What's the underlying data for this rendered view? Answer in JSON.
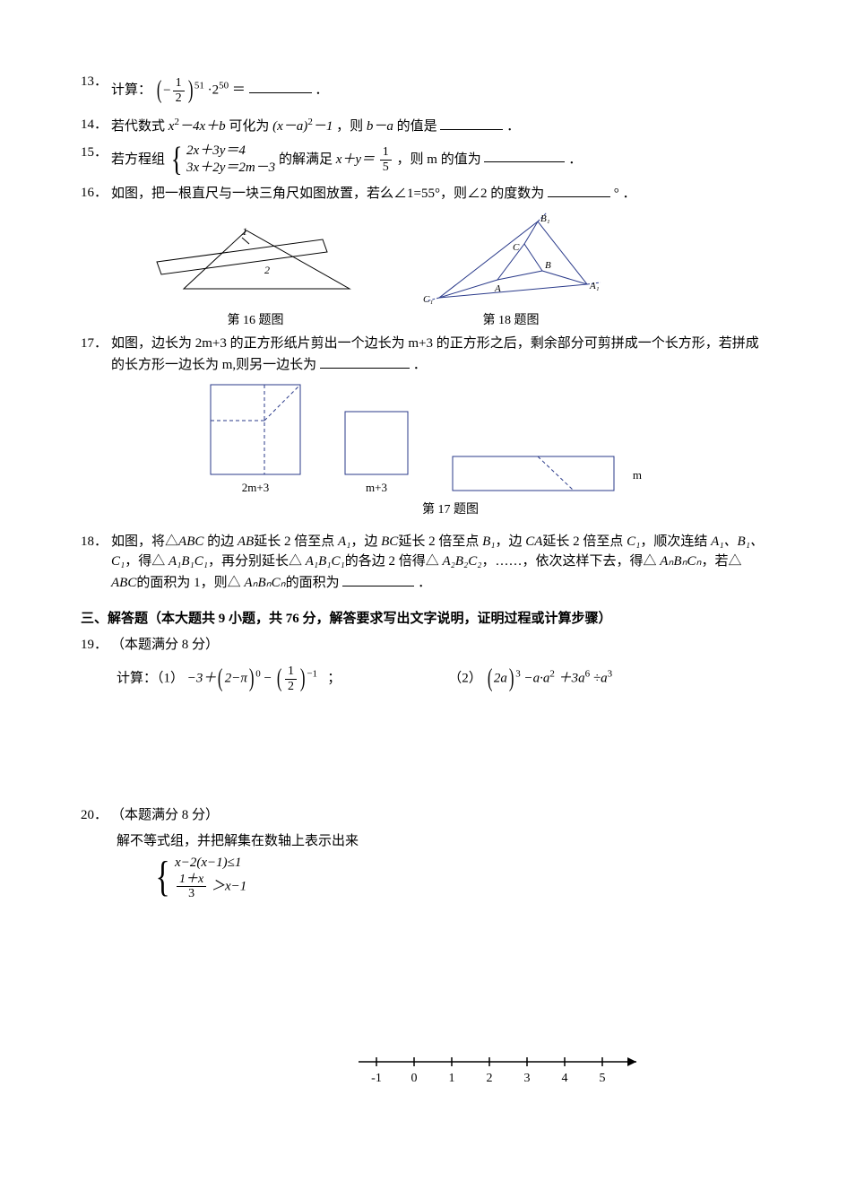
{
  "q13": {
    "num": "13．",
    "prefix": "计算：",
    "exp": "51",
    "dot": "·2",
    "exp2": "50",
    "eq": "＝",
    "period": "．"
  },
  "q14": {
    "num": "14．",
    "text1": "若代数式",
    "expr1_a": "x",
    "expr1_b": "－4",
    "expr1_c": "x＋b",
    "text2": "可化为",
    "expr2_a": "(x－a)",
    "expr2_b": "－1",
    "text3": "，则",
    "expr3": "b－a",
    "text4": "的值是",
    "period": "．"
  },
  "q15": {
    "num": "15．",
    "text1": "若方程组",
    "eq1": "2x＋3y＝4",
    "eq2": "3x＋2y＝2m－3",
    "text2": "的解满足",
    "expr": "x＋y＝",
    "frac_n": "1",
    "frac_d": "5",
    "text3": "，则 m 的值为",
    "period": "．"
  },
  "q16": {
    "num": "16．",
    "text1": "如图，把一根直尺与一块三角尺如图放置，若么∠1=55°，则∠2 的度数为",
    "deg": "°",
    "period": "．"
  },
  "fig16_caption": "第 16 题图",
  "fig18_caption": "第 18 题图",
  "fig18_labels": {
    "B1": "B₁",
    "B": "B",
    "C": "C",
    "A": "A",
    "A1": "A₁",
    "C1": "C₁"
  },
  "q17": {
    "num": "17．",
    "text1": "如图，边长为 2m+3 的正方形纸片剪出一个边长为 m+3 的正方形之后，剩余部分可剪拼成一个长方形，若拼成的长方形一边长为 m,则另一边长为",
    "period": "．",
    "label1": "2m+3",
    "label2": "m+3",
    "label3": "m",
    "caption": "第 17 题图"
  },
  "q18": {
    "num": "18．",
    "text1": "如图，将△",
    "abc": "ABC",
    "text2": " 的边",
    "ab": "AB",
    "text3": "延长 2 倍至点",
    "a1": "A₁",
    "text4": "，边",
    "bc": "BC",
    "text5": "延长 2 倍至点",
    "b1": "B₁",
    "text6": "，边",
    "ca": "CA",
    "text7": "延长 2 倍至点",
    "c1": "C₁",
    "text8": "，顺次连结",
    "list1": "A₁、B₁、C₁",
    "text9": "，得△",
    "a1b1c1": "A₁B₁C₁",
    "text10": "，再分别延长△",
    "text11": "的各边 2 倍得△",
    "a2b2c2": "A₂B₂C₂",
    "text12": "，……，依次这样下去，得△",
    "anbncn": "AₙBₙCₙ",
    "text13": "，若△",
    "text14": "的面积为 1，则△",
    "text15": "的面积为",
    "period": "．"
  },
  "section3": "三、解答题（本大题共 9 小题，共 76 分，解答要求写出文字说明，证明过程或计算步骤）",
  "q19": {
    "num": "19．",
    "header": "（本题满分 8 分）",
    "prefix": "计算：（1）",
    "p1_a": "−3＋",
    "p1_b": "2−π",
    "p1_exp0": "0",
    "p1_minus": "−",
    "p1_frac_n": "1",
    "p1_frac_d": "2",
    "p1_exp_neg1": "−1",
    "semicolon": "；",
    "p2_label": "（2）",
    "p2_a": "2a",
    "p2_exp3": "3",
    "p2_b": "−a·a",
    "p2_exp2": "2",
    "p2_c": "＋3a",
    "p2_exp6": "6",
    "p2_d": "÷a"
  },
  "q20": {
    "num": "20．",
    "header": "（本题满分 8 分）",
    "line1": "解不等式组，并把解集在数轴上表示出来",
    "ineq1_a": "x−2",
    "ineq1_b": "x−1",
    "ineq1_c": "≤1",
    "ineq2_n": "1＋x",
    "ineq2_d": "3",
    "ineq2_b": "＞x−1"
  },
  "numberline": {
    "ticks": [
      "-1",
      "0",
      "1",
      "2",
      "3",
      "4",
      "5"
    ]
  },
  "colors": {
    "text": "#000000",
    "diagram_blue": "#2a3a8a",
    "bg": "#ffffff"
  }
}
